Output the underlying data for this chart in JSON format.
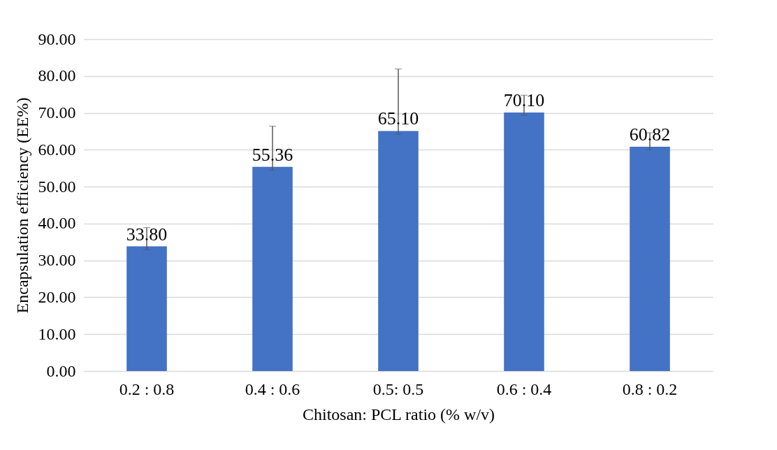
{
  "chart_data": {
    "type": "bar",
    "xlabel": "Chitosan: PCL ratio (% w/v)",
    "ylabel": "Encapsulation efficiency (EE%)",
    "categories": [
      "0.2 : 0.8",
      "0.4 : 0.6",
      "0.5: 0.5",
      "0.6 : 0.4",
      "0.8 : 0.2"
    ],
    "values": [
      33.8,
      55.36,
      65.1,
      70.1,
      60.82
    ],
    "errors": [
      [
        32.9,
        38.9
      ],
      [
        54.5,
        66.4
      ],
      [
        64.2,
        81.9
      ],
      [
        69.4,
        74.8
      ],
      [
        60.0,
        64.6
      ]
    ],
    "value_labels": [
      "33.80",
      "55.36",
      "65.10",
      "70.10",
      "60.82"
    ],
    "color": "#4472c4",
    "grid": "y",
    "ylim": [
      0,
      90
    ],
    "yticks": [
      {
        "value": 0,
        "label": "0.00"
      },
      {
        "value": 10,
        "label": "10.00"
      },
      {
        "value": 20,
        "label": "20.00"
      },
      {
        "value": 30,
        "label": "30.00"
      },
      {
        "value": 40,
        "label": "40.00"
      },
      {
        "value": 50,
        "label": "50.00"
      },
      {
        "value": 60,
        "label": "60.00"
      },
      {
        "value": 70,
        "label": "70.00"
      },
      {
        "value": 80,
        "label": "80.00"
      },
      {
        "value": 90,
        "label": "90.00"
      }
    ]
  }
}
